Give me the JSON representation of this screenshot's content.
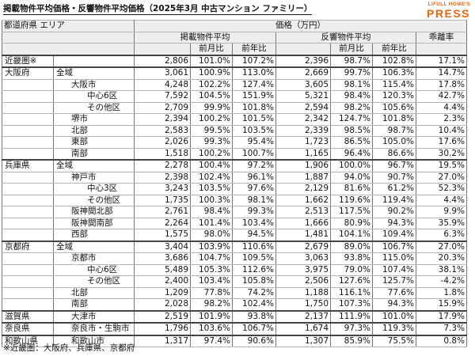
{
  "header": {
    "title": "掲載物件平均価格・反響物件平均価格（2025年3月 中古マンション ファミリー）",
    "logo_top": "LIFULL HOME'S",
    "logo_main": "PRESS"
  },
  "table": {
    "col_area": "都道府県 エリア",
    "col_price": "価格（万円）",
    "col_listing": "掲載物件平均",
    "col_response": "反響物件平均",
    "col_gap": "乖離率",
    "col_mom": "前月比",
    "col_yoy": "前年比",
    "rows": [
      {
        "pref": "近畿圏※",
        "area": "",
        "indent": 0,
        "lp": "2,806",
        "lm": "101.0%",
        "ly": "107.2%",
        "rp": "2,396",
        "rm": "98.7%",
        "ry": "102.8%",
        "gap": "17.1%",
        "sep": true
      },
      {
        "pref": "大阪府",
        "area": "全域",
        "indent": 1,
        "lp": "3,061",
        "lm": "100.9%",
        "ly": "113.0%",
        "rp": "2,669",
        "rm": "99.7%",
        "ry": "106.3%",
        "gap": "14.7%",
        "sep": true
      },
      {
        "pref": "",
        "area": "大阪市",
        "indent": 2,
        "lp": "4,248",
        "lm": "102.2%",
        "ly": "127.4%",
        "rp": "3,605",
        "rm": "98.1%",
        "ry": "115.4%",
        "gap": "17.8%"
      },
      {
        "pref": "",
        "area": "中心6区",
        "indent": 3,
        "lp": "7,592",
        "lm": "104.5%",
        "ly": "151.9%",
        "rp": "5,321",
        "rm": "98.4%",
        "ry": "120.3%",
        "gap": "42.7%"
      },
      {
        "pref": "",
        "area": "その他区",
        "indent": 3,
        "lp": "2,709",
        "lm": "99.9%",
        "ly": "101.8%",
        "rp": "2,594",
        "rm": "98.2%",
        "ry": "105.6%",
        "gap": "4.4%"
      },
      {
        "pref": "",
        "area": "堺市",
        "indent": 2,
        "lp": "2,394",
        "lm": "100.2%",
        "ly": "101.5%",
        "rp": "2,342",
        "rm": "124.7%",
        "ry": "101.8%",
        "gap": "2.3%"
      },
      {
        "pref": "",
        "area": "北部",
        "indent": 2,
        "lp": "2,583",
        "lm": "99.5%",
        "ly": "103.5%",
        "rp": "2,339",
        "rm": "98.5%",
        "ry": "98.7%",
        "gap": "10.4%"
      },
      {
        "pref": "",
        "area": "東部",
        "indent": 2,
        "lp": "2,026",
        "lm": "99.3%",
        "ly": "95.4%",
        "rp": "1,723",
        "rm": "86.5%",
        "ry": "105.0%",
        "gap": "17.6%"
      },
      {
        "pref": "",
        "area": "南部",
        "indent": 2,
        "lp": "1,518",
        "lm": "100.2%",
        "ly": "100.7%",
        "rp": "1,165",
        "rm": "96.4%",
        "ry": "86.6%",
        "gap": "30.2%"
      },
      {
        "pref": "兵庫県",
        "area": "全域",
        "indent": 1,
        "lp": "2,278",
        "lm": "100.4%",
        "ly": "97.2%",
        "rp": "1,906",
        "rm": "100.0%",
        "ry": "96.7%",
        "gap": "19.5%",
        "sep": true
      },
      {
        "pref": "",
        "area": "神戸市",
        "indent": 2,
        "lp": "2,398",
        "lm": "102.4%",
        "ly": "96.1%",
        "rp": "1,887",
        "rm": "94.0%",
        "ry": "90.7%",
        "gap": "27.0%"
      },
      {
        "pref": "",
        "area": "中心3区",
        "indent": 3,
        "lp": "3,243",
        "lm": "103.5%",
        "ly": "97.6%",
        "rp": "2,129",
        "rm": "81.6%",
        "ry": "61.2%",
        "gap": "52.3%"
      },
      {
        "pref": "",
        "area": "その他区",
        "indent": 3,
        "lp": "1,735",
        "lm": "100.3%",
        "ly": "98.1%",
        "rp": "1,662",
        "rm": "119.6%",
        "ry": "119.4%",
        "gap": "4.4%"
      },
      {
        "pref": "",
        "area": "阪神間北部",
        "indent": 2,
        "lp": "2,761",
        "lm": "98.4%",
        "ly": "99.3%",
        "rp": "2,513",
        "rm": "117.5%",
        "ry": "90.2%",
        "gap": "9.9%"
      },
      {
        "pref": "",
        "area": "阪神間南部",
        "indent": 2,
        "lp": "2,264",
        "lm": "101.4%",
        "ly": "103.4%",
        "rp": "1,666",
        "rm": "80.9%",
        "ry": "94.3%",
        "gap": "35.9%"
      },
      {
        "pref": "",
        "area": "西部",
        "indent": 2,
        "lp": "1,575",
        "lm": "98.0%",
        "ly": "94.5%",
        "rp": "1,481",
        "rm": "104.1%",
        "ry": "109.4%",
        "gap": "6.3%"
      },
      {
        "pref": "京都府",
        "area": "全域",
        "indent": 1,
        "lp": "3,404",
        "lm": "103.9%",
        "ly": "110.6%",
        "rp": "2,679",
        "rm": "89.0%",
        "ry": "106.7%",
        "gap": "27.0%",
        "sep": true
      },
      {
        "pref": "",
        "area": "京都市",
        "indent": 2,
        "lp": "3,686",
        "lm": "104.7%",
        "ly": "109.5%",
        "rp": "3,063",
        "rm": "93.8%",
        "ry": "115.0%",
        "gap": "20.3%"
      },
      {
        "pref": "",
        "area": "中心6区",
        "indent": 3,
        "lp": "5,489",
        "lm": "105.3%",
        "ly": "112.6%",
        "rp": "3,975",
        "rm": "79.0%",
        "ry": "107.4%",
        "gap": "38.1%"
      },
      {
        "pref": "",
        "area": "その他区",
        "indent": 3,
        "lp": "2,400",
        "lm": "103.4%",
        "ly": "105.8%",
        "rp": "2,506",
        "rm": "127.6%",
        "ry": "125.7%",
        "gap": "-4.2%"
      },
      {
        "pref": "",
        "area": "北部",
        "indent": 2,
        "lp": "1,209",
        "lm": "77.8%",
        "ly": "74.2%",
        "rp": "1,188",
        "rm": "116.1%",
        "ry": "77.6%",
        "gap": "1.8%"
      },
      {
        "pref": "",
        "area": "南部",
        "indent": 2,
        "lp": "2,028",
        "lm": "98.2%",
        "ly": "102.4%",
        "rp": "1,750",
        "rm": "107.3%",
        "ry": "94.3%",
        "gap": "15.9%"
      },
      {
        "pref": "滋賀県",
        "area": "大津市",
        "indent": 2,
        "lp": "2,519",
        "lm": "101.9%",
        "ly": "93.8%",
        "rp": "2,137",
        "rm": "111.9%",
        "ry": "101.0%",
        "gap": "17.9%",
        "sep": true
      },
      {
        "pref": "奈良県",
        "area": "奈良市・生駒市",
        "indent": 2,
        "small": true,
        "lp": "1,796",
        "lm": "103.6%",
        "ly": "106.7%",
        "rp": "1,674",
        "rm": "97.3%",
        "ry": "119.3%",
        "gap": "7.3%",
        "sep": true
      },
      {
        "pref": "和歌山県",
        "area": "和歌山市",
        "indent": 2,
        "lp": "1,317",
        "lm": "97.4%",
        "ly": "90.6%",
        "rp": "1,307",
        "rm": "85.9%",
        "ry": "75.5%",
        "gap": "0.8%",
        "sep": true
      }
    ]
  },
  "footnote": "※近畿圏：大阪府、兵庫県、京都府"
}
